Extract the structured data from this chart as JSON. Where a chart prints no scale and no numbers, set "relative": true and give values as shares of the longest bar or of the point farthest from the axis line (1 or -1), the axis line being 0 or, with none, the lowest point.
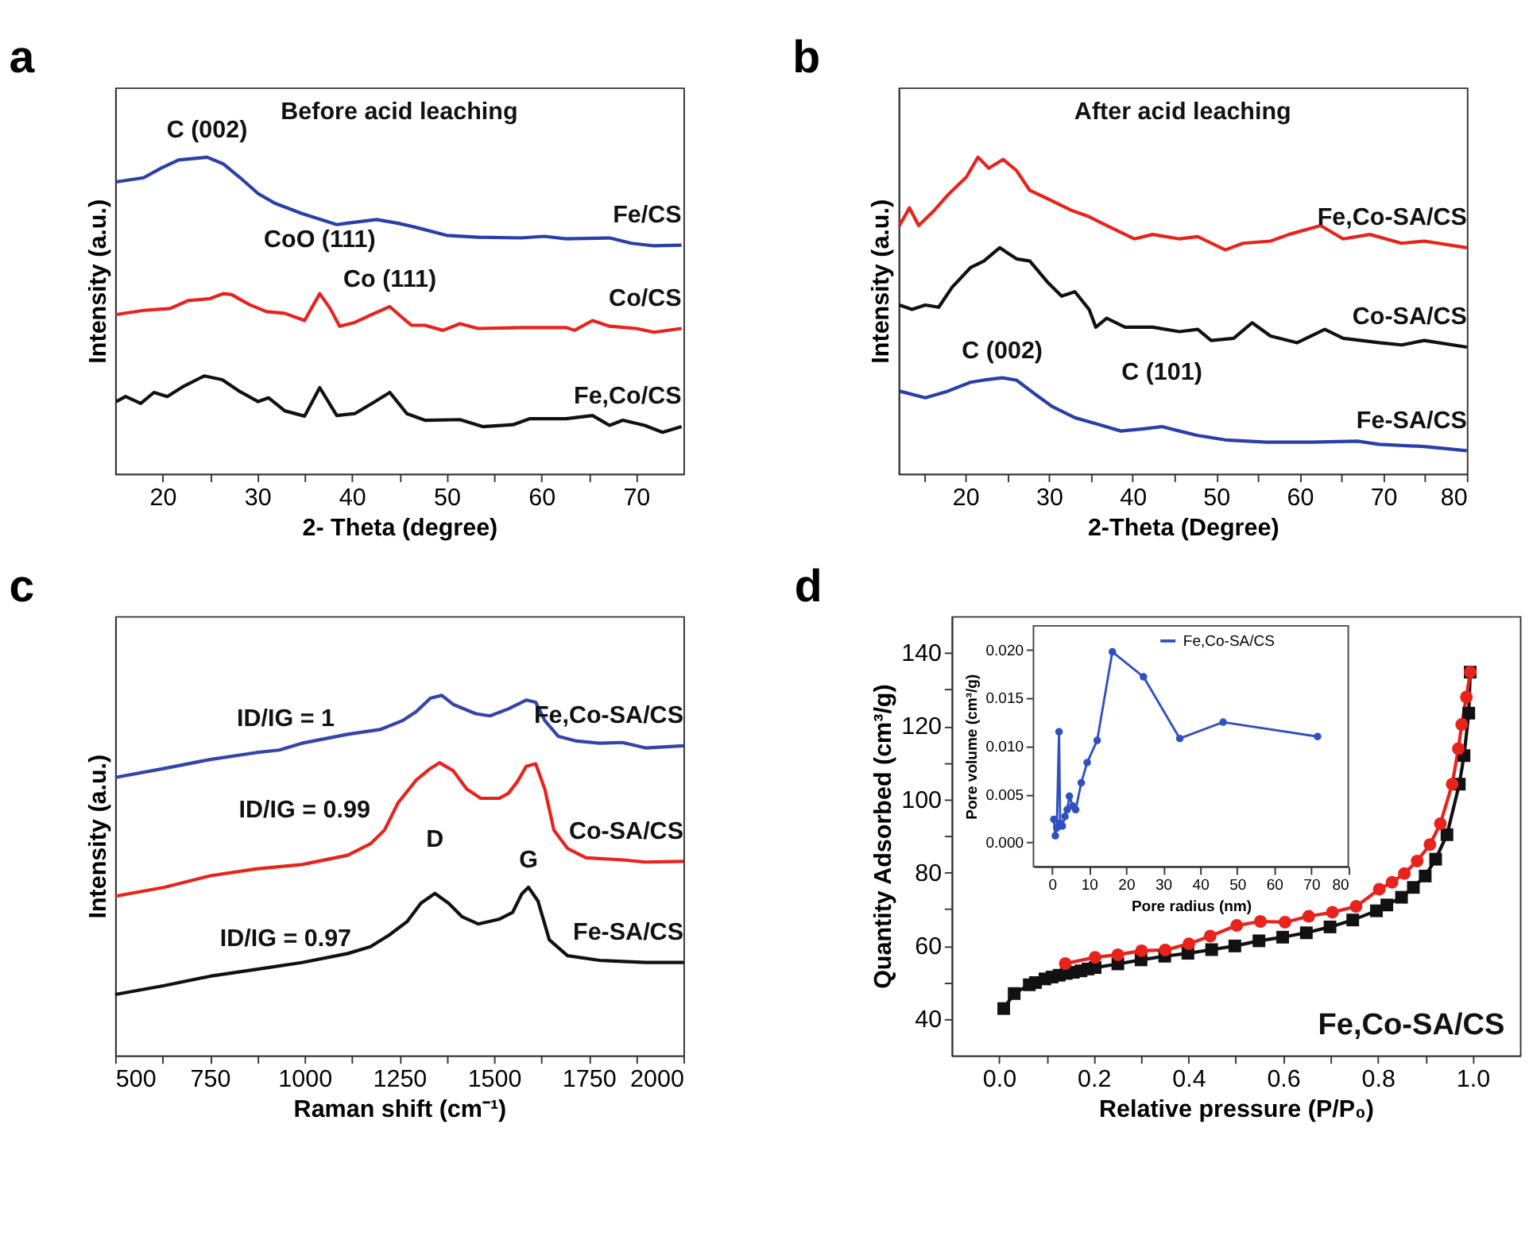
{
  "chart_data": [
    {
      "type": "line",
      "title": "Before acid leaching",
      "xlabel": "2- Theta (degree)",
      "ylabel": "Intensity (a.u.)",
      "relative": true,
      "tick_labels": "x",
      "xlim": [
        15,
        75
      ],
      "xticks": [
        20,
        {
          "value": 25,
          "label": null
        },
        30,
        {
          "value": 35,
          "label": null
        },
        40,
        {
          "value": 45,
          "label": null
        },
        50,
        {
          "value": 55,
          "label": null
        },
        60,
        {
          "value": 65,
          "label": null
        },
        70
      ],
      "annotations": [
        "a",
        {
          "text": "C (002)",
          "x": 24.7,
          "y": 1.0
        },
        {
          "text": "CoO (111)",
          "x": 36.6,
          "y": 0.569
        },
        {
          "text": "Co (111)",
          "x": 44.0,
          "y": 0.528
        }
      ],
      "series": [
        {
          "name": "Fe/CS",
          "color": "#2a3fa8",
          "x": [
            15.1,
            18.0,
            19.9,
            21.7,
            24.7,
            26.4,
            28.2,
            30.1,
            31.9,
            34.7,
            38.4,
            39.4,
            42.6,
            44.9,
            46.8,
            50.0,
            53.3,
            57.9,
            60.3,
            62.6,
            67.2,
            69.5,
            71.9,
            74.8
          ],
          "values": [
            0.922,
            0.935,
            0.966,
            0.991,
            1.0,
            0.979,
            0.935,
            0.885,
            0.854,
            0.822,
            0.787,
            0.791,
            0.803,
            0.791,
            0.778,
            0.753,
            0.747,
            0.745,
            0.75,
            0.742,
            0.745,
            0.728,
            0.72,
            0.722
          ]
        },
        {
          "name": "Co/CS",
          "color": "#e8231c",
          "x": [
            15.1,
            18.0,
            20.8,
            22.7,
            25.0,
            26.4,
            27.3,
            29.2,
            31.0,
            32.9,
            35.0,
            36.6,
            37.7,
            38.7,
            40.3,
            42.1,
            44.0,
            45.4,
            46.3,
            47.7,
            49.6,
            51.4,
            53.3,
            57.9,
            62.6,
            63.5,
            65.4,
            67.2,
            70.0,
            71.9,
            74.8
          ],
          "values": [
            0.503,
            0.516,
            0.522,
            0.547,
            0.553,
            0.569,
            0.566,
            0.534,
            0.512,
            0.507,
            0.484,
            0.569,
            0.522,
            0.466,
            0.478,
            0.503,
            0.528,
            0.491,
            0.469,
            0.469,
            0.453,
            0.474,
            0.459,
            0.462,
            0.462,
            0.453,
            0.484,
            0.466,
            0.459,
            0.447,
            0.459
          ]
        },
        {
          "name": "Fe,Co/CS",
          "color": "#111111",
          "x": [
            15.1,
            16.1,
            17.7,
            19.1,
            20.5,
            22.1,
            24.4,
            26.3,
            28.2,
            30.1,
            31.2,
            32.9,
            35.0,
            36.6,
            38.4,
            40.3,
            42.1,
            44.0,
            45.8,
            47.7,
            51.4,
            53.8,
            57.0,
            58.8,
            62.6,
            65.4,
            67.2,
            68.6,
            70.9,
            72.8,
            74.8
          ],
          "values": [
            0.228,
            0.244,
            0.222,
            0.257,
            0.244,
            0.274,
            0.309,
            0.297,
            0.259,
            0.228,
            0.24,
            0.199,
            0.182,
            0.272,
            0.184,
            0.19,
            0.222,
            0.257,
            0.19,
            0.169,
            0.171,
            0.149,
            0.155,
            0.174,
            0.174,
            0.184,
            0.153,
            0.169,
            0.153,
            0.131,
            0.149
          ]
        }
      ]
    },
    {
      "type": "line",
      "title": "After acid leaching",
      "xlabel": "2-Theta (Degree)",
      "ylabel": "Intensity (a.u.)",
      "relative": true,
      "tick_labels": "x",
      "xlim": [
        12,
        80
      ],
      "xticks": [
        {
          "value": 15,
          "label": null
        },
        20,
        {
          "value": 25,
          "label": null
        },
        30,
        {
          "value": 35,
          "label": null
        },
        40,
        {
          "value": 45,
          "label": null
        },
        50,
        {
          "value": 55,
          "label": null
        },
        60,
        {
          "value": 65,
          "label": null
        },
        70,
        {
          "value": 75,
          "label": null
        },
        80
      ],
      "annotations": [
        "b",
        {
          "text": "C (002)",
          "x": 24.4,
          "y": 0.303
        },
        {
          "text": "C (101)",
          "x": 43.5,
          "y": 0.149
        }
      ],
      "series": [
        {
          "name": "Fe,Co-SA/CS",
          "color": "#e8231c",
          "x": [
            12.1,
            13.3,
            14.4,
            16.3,
            17.9,
            20.1,
            21.5,
            22.8,
            24.5,
            26.1,
            27.7,
            29.9,
            32.6,
            34.8,
            36.9,
            40.2,
            42.4,
            45.6,
            47.8,
            51.1,
            53.2,
            56.5,
            58.7,
            62.5,
            65.2,
            68.4,
            72.2,
            74.9,
            80.0
          ],
          "values": [
            0.784,
            0.84,
            0.784,
            0.833,
            0.881,
            0.937,
            1.0,
            0.965,
            0.993,
            0.958,
            0.895,
            0.868,
            0.833,
            0.812,
            0.784,
            0.742,
            0.756,
            0.742,
            0.749,
            0.707,
            0.728,
            0.735,
            0.756,
            0.784,
            0.742,
            0.756,
            0.728,
            0.735,
            0.714
          ]
        },
        {
          "name": "Co-SA/CS",
          "color": "#111111",
          "x": [
            12.1,
            13.6,
            15.2,
            16.8,
            18.4,
            20.6,
            22.2,
            24.1,
            26.1,
            27.7,
            29.9,
            31.5,
            33.1,
            34.8,
            35.6,
            36.9,
            39.1,
            42.4,
            45.6,
            47.8,
            49.4,
            52.1,
            54.3,
            56.5,
            59.7,
            63.0,
            65.2,
            69.5,
            72.2,
            74.9,
            80.0
          ],
          "values": [
            0.533,
            0.519,
            0.533,
            0.526,
            0.589,
            0.651,
            0.672,
            0.714,
            0.679,
            0.672,
            0.603,
            0.561,
            0.575,
            0.519,
            0.463,
            0.491,
            0.463,
            0.463,
            0.449,
            0.456,
            0.421,
            0.428,
            0.477,
            0.435,
            0.414,
            0.456,
            0.428,
            0.414,
            0.407,
            0.421,
            0.4
          ]
        },
        {
          "name": "Fe-SA/CS",
          "color": "#2a3fa8",
          "x": [
            12.1,
            15.2,
            17.9,
            20.6,
            22.2,
            24.4,
            26.1,
            28.2,
            30.4,
            33.1,
            35.9,
            38.6,
            41.3,
            43.5,
            45.6,
            47.8,
            51.1,
            56.0,
            61.4,
            66.9,
            69.5,
            74.9,
            80.0
          ],
          "values": [
            0.261,
            0.24,
            0.261,
            0.289,
            0.296,
            0.303,
            0.296,
            0.254,
            0.212,
            0.177,
            0.156,
            0.135,
            0.142,
            0.149,
            0.135,
            0.121,
            0.107,
            0.1,
            0.1,
            0.103,
            0.093,
            0.086,
            0.073
          ]
        }
      ]
    },
    {
      "type": "line",
      "xlabel": "Raman shift (cm⁻¹)",
      "ylabel": "Intensity (a.u.)",
      "relative": true,
      "tick_labels": "x",
      "xlim": [
        500,
        2000
      ],
      "xticks": [
        500,
        {
          "value": 625,
          "label": null
        },
        750,
        {
          "value": 875,
          "label": null
        },
        1000,
        {
          "value": 1125,
          "label": null
        },
        1250,
        {
          "value": 1375,
          "label": null
        },
        1500,
        {
          "value": 1625,
          "label": null
        },
        1750,
        {
          "value": 1875,
          "label": null
        },
        2000
      ],
      "annotations": [
        "c",
        {
          "text": "ID/IG = 1",
          "x": 950,
          "y": 0.86
        },
        {
          "text": "ID/IG = 0.99",
          "x": 1000,
          "y": 0.53
        },
        {
          "text": "ID/IG = 0.97",
          "x": 950,
          "y": 0.25
        },
        {
          "text": "D",
          "x": 1344,
          "y": 0.45
        },
        {
          "text": "G",
          "x": 1591,
          "y": 0.467
        }
      ],
      "series": [
        {
          "name": "Fe,Co-SA/CS",
          "color": "#3344aa",
          "x": [
            500,
            630,
            751,
            872,
            933,
            993,
            1114,
            1199,
            1259,
            1295,
            1332,
            1362,
            1392,
            1452,
            1489,
            1537,
            1585,
            1610,
            1634,
            1670,
            1718,
            1779,
            1839,
            1900,
            2000
          ],
          "values": [
            0.772,
            0.797,
            0.822,
            0.841,
            0.848,
            0.867,
            0.892,
            0.905,
            0.93,
            0.955,
            0.992,
            1.0,
            0.975,
            0.949,
            0.943,
            0.962,
            0.987,
            0.981,
            0.93,
            0.886,
            0.873,
            0.867,
            0.869,
            0.854,
            0.86
          ]
        },
        {
          "name": "Co-SA/CS",
          "color": "#e8231c",
          "x": [
            500,
            630,
            751,
            872,
            993,
            1114,
            1174,
            1211,
            1247,
            1295,
            1332,
            1356,
            1392,
            1428,
            1465,
            1513,
            1537,
            1561,
            1585,
            1610,
            1634,
            1658,
            1694,
            1743,
            1839,
            1900,
            2000
          ],
          "values": [
            0.442,
            0.467,
            0.499,
            0.518,
            0.53,
            0.556,
            0.588,
            0.626,
            0.702,
            0.765,
            0.797,
            0.813,
            0.791,
            0.74,
            0.714,
            0.714,
            0.727,
            0.759,
            0.803,
            0.81,
            0.74,
            0.626,
            0.575,
            0.549,
            0.543,
            0.537,
            0.539
          ]
        },
        {
          "name": "Fe-SA/CS",
          "color": "#111111",
          "x": [
            500,
            630,
            751,
            872,
            993,
            1114,
            1174,
            1223,
            1271,
            1307,
            1344,
            1380,
            1416,
            1458,
            1513,
            1549,
            1573,
            1591,
            1616,
            1646,
            1694,
            1779,
            1900,
            2000
          ],
          "values": [
            0.169,
            0.194,
            0.22,
            0.239,
            0.258,
            0.283,
            0.302,
            0.334,
            0.372,
            0.423,
            0.45,
            0.423,
            0.385,
            0.365,
            0.378,
            0.397,
            0.448,
            0.467,
            0.429,
            0.321,
            0.277,
            0.264,
            0.258,
            0.258
          ]
        }
      ]
    },
    {
      "type": "line",
      "xlabel": "Relative pressure (P/P₀)",
      "ylabel": "Quantity Adsorbed (cm³/g)",
      "xlim": [
        -0.1,
        1.1
      ],
      "xticks": [
        {
          "value": 0,
          "label": "0.0"
        },
        {
          "value": 0.1,
          "label": null
        },
        {
          "value": 0.2,
          "label": "0.2"
        },
        {
          "value": 0.3,
          "label": null
        },
        {
          "value": 0.4,
          "label": "0.4"
        },
        {
          "value": 0.5,
          "label": null
        },
        {
          "value": 0.6,
          "label": "0.6"
        },
        {
          "value": 0.7,
          "label": null
        },
        {
          "value": 0.8,
          "label": "0.8"
        },
        {
          "value": 0.9,
          "label": null
        },
        {
          "value": 1,
          "label": "1.0"
        }
      ],
      "ylim": [
        30,
        150
      ],
      "yticks": [
        40,
        {
          "value": 50,
          "label": null
        },
        60,
        {
          "value": 70,
          "label": null
        },
        80,
        {
          "value": 90,
          "label": null
        },
        100,
        {
          "value": 110,
          "label": null
        },
        120,
        {
          "value": 130,
          "label": null
        },
        140
      ],
      "annotations": [
        "d",
        "Fe,Co-SA/CS"
      ],
      "series": [
        {
          "color": "#111111",
          "marker": "square",
          "x": [
            0.01,
            0.032,
            0.064,
            0.077,
            0.097,
            0.112,
            0.127,
            0.142,
            0.157,
            0.173,
            0.188,
            0.203,
            0.251,
            0.3,
            0.35,
            0.399,
            0.449,
            0.498,
            0.549,
            0.599,
            0.649,
            0.699,
            0.747,
            0.797,
            0.819,
            0.85,
            0.875,
            0.9,
            0.922,
            0.946,
            0.972,
            0.982,
            0.992,
            0.995
          ],
          "values": [
            42.8,
            46.9,
            49.3,
            49.9,
            50.9,
            51.4,
            51.9,
            52.4,
            52.7,
            53.1,
            53.6,
            54.0,
            55.0,
            56.1,
            57.1,
            57.9,
            58.9,
            59.9,
            61.3,
            62.3,
            63.5,
            65.1,
            67.0,
            69.5,
            71.1,
            73.2,
            75.9,
            79.0,
            83.6,
            90.3,
            104.1,
            111.9,
            123.5,
            134.7
          ]
        },
        {
          "color": "#e8231c",
          "marker": "circle",
          "x": [
            0.995,
            0.987,
            0.977,
            0.97,
            0.957,
            0.932,
            0.91,
            0.883,
            0.856,
            0.83,
            0.803,
            0.754,
            0.704,
            0.654,
            0.604,
            0.552,
            0.502,
            0.446,
            0.401,
            0.351,
            0.301,
            0.251,
            0.203,
            0.14
          ],
          "values": [
            134.7,
            127.9,
            120.4,
            113.8,
            104.1,
            93.3,
            87.6,
            83.1,
            79.7,
            77.3,
            75.4,
            70.7,
            69.1,
            68.0,
            66.4,
            66.6,
            65.5,
            62.6,
            60.5,
            58.8,
            58.6,
            57.5,
            56.8,
            55.1
          ]
        }
      ]
    },
    {
      "type": "line",
      "xlabel": "Pore radius (nm)",
      "ylabel": "Pore volume (cm³/g)",
      "legend": "top right",
      "xlim": [
        -5,
        80
      ],
      "xticks": [
        0,
        10,
        20,
        30,
        40,
        50,
        60,
        70,
        80
      ],
      "ylim": [
        -0.0025,
        0.0225
      ],
      "yticks": [
        {
          "value": 0,
          "label": "0.000"
        },
        {
          "value": 0.005,
          "label": "0.005"
        },
        {
          "value": 0.01,
          "label": "0.010"
        },
        {
          "value": 0.015,
          "label": "0.015"
        },
        {
          "value": 0.02,
          "label": "0.020"
        }
      ],
      "series": [
        {
          "name": "Fe,Co-SA/CS",
          "color": "#3050c0",
          "marker": "circle",
          "x": [
            0.5,
            0.9,
            1.3,
            1.9,
            2.2,
            2.8,
            3.5,
            4.1,
            4.7,
            5.6,
            6.4,
            7.9,
            9.5,
            12.2,
            16.3,
            24.7,
            34.5,
            46.2,
            71.7
          ],
          "values": [
            0.0024,
            0.0007,
            0.0015,
            0.0115,
            0.002,
            0.0017,
            0.0027,
            0.0034,
            0.0048,
            0.0038,
            0.0034,
            0.0062,
            0.0083,
            0.0106,
            0.0198,
            0.0172,
            0.0108,
            0.0125,
            0.011
          ]
        }
      ]
    }
  ]
}
